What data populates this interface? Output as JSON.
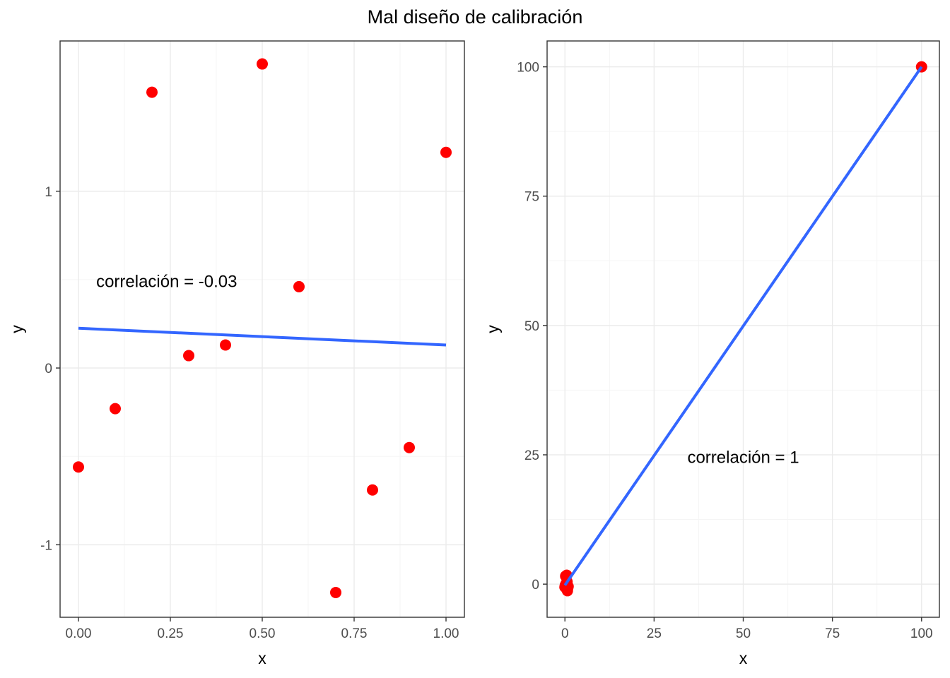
{
  "title": "Mal diseño de calibración",
  "colors": {
    "point": "#ff0000",
    "line": "#3366ff",
    "grid_major": "#ebebeb",
    "grid_minor": "#f5f5f5",
    "panel_border": "#333333",
    "tick_text": "#4d4d4d"
  },
  "chart_data": [
    {
      "type": "scatter",
      "xlabel": "x",
      "ylabel": "y",
      "xlim": [
        -0.05,
        1.05
      ],
      "ylim": [
        -1.41,
        1.85
      ],
      "xticks": [
        0,
        0.25,
        0.5,
        0.75,
        1
      ],
      "xtick_labels": [
        "0.00",
        "0.25",
        "0.50",
        "0.75",
        "1.00"
      ],
      "yticks": [
        -1,
        0,
        1
      ],
      "ytick_labels": [
        "-1",
        "0",
        "1"
      ],
      "points": {
        "x": [
          0,
          0.1,
          0.2,
          0.3,
          0.4,
          0.5,
          0.6,
          0.7,
          0.8,
          0.9,
          1.0
        ],
        "y": [
          -0.56,
          -0.23,
          1.56,
          0.07,
          0.13,
          1.72,
          0.46,
          -1.27,
          -0.69,
          -0.45,
          1.22
        ]
      },
      "fit_line": {
        "x": [
          0,
          1
        ],
        "y": [
          0.225,
          0.13
        ]
      },
      "annotation": {
        "text": "correlación =  -0.03",
        "x": 0.24,
        "y": 0.49
      }
    },
    {
      "type": "scatter",
      "xlabel": "x",
      "ylabel": "y",
      "xlim": [
        -5,
        105
      ],
      "ylim": [
        -6.4,
        105
      ],
      "xticks": [
        0,
        25,
        50,
        75,
        100
      ],
      "xtick_labels": [
        "0",
        "25",
        "50",
        "75",
        "100"
      ],
      "yticks": [
        0,
        25,
        50,
        75,
        100
      ],
      "ytick_labels": [
        "0",
        "25",
        "50",
        "75",
        "100"
      ],
      "points": {
        "x": [
          0,
          0.1,
          0.2,
          0.3,
          0.4,
          0.5,
          0.6,
          0.7,
          0.8,
          0.9,
          100
        ],
        "y": [
          -0.56,
          -0.23,
          1.56,
          0.07,
          0.13,
          1.72,
          0.46,
          -1.27,
          -0.69,
          -0.45,
          100
        ]
      },
      "fit_line": {
        "x": [
          0,
          100
        ],
        "y": [
          -0.2,
          100
        ]
      },
      "annotation": {
        "text": "correlación =  1",
        "x": 50,
        "y": 24.5
      }
    }
  ]
}
